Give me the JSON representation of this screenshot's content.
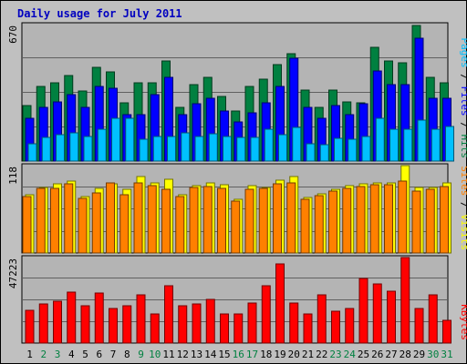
{
  "title": "Daily usage for July 2011",
  "colors": {
    "background": "#c0c0c0",
    "plot": "#b4b4b4",
    "hits": "#008040",
    "files": "#0000ff",
    "pages": "#00c0ff",
    "visits": "#ffff00",
    "sites": "#ff8000",
    "kbytes": "#ff0000",
    "weekday_label": "#000000",
    "weekend_label": "#008040"
  },
  "chart_data": [
    {
      "type": "bar",
      "title": "Daily usage for July 2011",
      "categories": [
        "1",
        "2",
        "3",
        "4",
        "5",
        "6",
        "7",
        "8",
        "9",
        "10",
        "11",
        "12",
        "13",
        "14",
        "15",
        "16",
        "17",
        "18",
        "19",
        "20",
        "21",
        "22",
        "23",
        "24",
        "25",
        "26",
        "27",
        "28",
        "29",
        "30",
        "31"
      ],
      "weekend_days": [
        "2",
        "3",
        "9",
        "10",
        "16",
        "17",
        "23",
        "24",
        "30",
        "31"
      ],
      "y_max_label": "670",
      "ylim": [
        0,
        670
      ],
      "series": [
        {
          "name": "Hits",
          "values": [
            272,
            367,
            385,
            420,
            344,
            462,
            436,
            284,
            385,
            385,
            490,
            263,
            376,
            411,
            315,
            245,
            367,
            402,
            472,
            525,
            350,
            262,
            350,
            292,
            288,
            560,
            490,
            484,
            665,
            411,
            385
          ]
        },
        {
          "name": "Files",
          "values": [
            209,
            262,
            290,
            327,
            262,
            367,
            358,
            227,
            227,
            324,
            411,
            227,
            280,
            307,
            245,
            192,
            236,
            288,
            367,
            504,
            262,
            210,
            272,
            227,
            280,
            440,
            376,
            376,
            602,
            306,
            306
          ]
        },
        {
          "name": "Pages",
          "values": [
            87,
            118,
            130,
            140,
            122,
            157,
            210,
            210,
            105,
            122,
            122,
            140,
            122,
            135,
            122,
            118,
            118,
            157,
            130,
            166,
            87,
            80,
            112,
            105,
            122,
            210,
            157,
            157,
            200,
            157,
            170
          ]
        }
      ],
      "ylabel": [
        "Pages",
        "Files",
        "Hits"
      ]
    },
    {
      "type": "bar",
      "categories": [
        "1",
        "2",
        "3",
        "4",
        "5",
        "6",
        "7",
        "8",
        "9",
        "10",
        "11",
        "12",
        "13",
        "14",
        "15",
        "16",
        "17",
        "18",
        "19",
        "20",
        "21",
        "22",
        "23",
        "24",
        "25",
        "26",
        "27",
        "28",
        "29",
        "30",
        "31"
      ],
      "y_max_label": "118",
      "ylim": [
        0,
        118
      ],
      "series": [
        {
          "name": "Visits",
          "values": [
            79,
            89,
            94,
            97,
            76,
            87,
            94,
            86,
            103,
            95,
            99,
            79,
            91,
            95,
            92,
            72,
            91,
            89,
            98,
            103,
            75,
            80,
            86,
            91,
            93,
            95,
            95,
            118,
            88,
            89,
            95
          ]
        },
        {
          "name": "Sites",
          "values": [
            76,
            87,
            87,
            94,
            74,
            81,
            95,
            79,
            95,
            91,
            86,
            76,
            88,
            90,
            87,
            70,
            86,
            87,
            94,
            95,
            72,
            78,
            83,
            87,
            90,
            92,
            92,
            97,
            84,
            86,
            90
          ]
        }
      ],
      "ylabel": [
        "Sites",
        "Visits"
      ]
    },
    {
      "type": "bar",
      "categories": [
        "1",
        "2",
        "3",
        "4",
        "5",
        "6",
        "7",
        "8",
        "9",
        "10",
        "11",
        "12",
        "13",
        "14",
        "15",
        "16",
        "17",
        "18",
        "19",
        "20",
        "21",
        "22",
        "23",
        "24",
        "25",
        "26",
        "27",
        "28",
        "29",
        "30",
        "31"
      ],
      "y_max_label": "47223",
      "ylim": [
        0,
        47223
      ],
      "series": [
        {
          "name": "KBytes",
          "values": [
            18000,
            21500,
            23000,
            28000,
            20500,
            27500,
            19000,
            20500,
            26500,
            16000,
            31500,
            20500,
            21800,
            24000,
            16200,
            16200,
            22000,
            31500,
            43500,
            22000,
            16200,
            26500,
            17700,
            19200,
            35800,
            32500,
            28800,
            47223,
            19100,
            26500,
            12500
          ]
        }
      ],
      "ylabel": [
        "KBytes"
      ]
    }
  ]
}
